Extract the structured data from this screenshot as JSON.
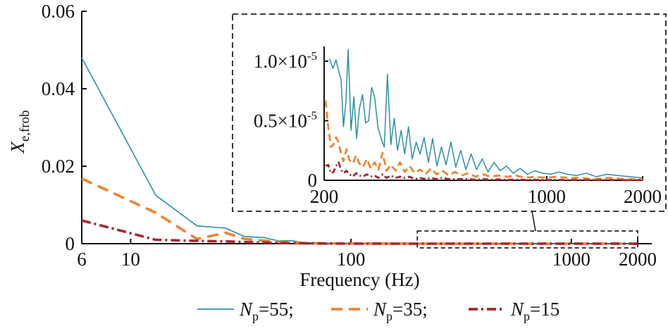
{
  "chart_data": {
    "type": "line",
    "x_scale": "log",
    "xlabel": "Frequency (Hz)",
    "ylabel": {
      "base": "X",
      "sub": "e,frob"
    },
    "xlim": [
      6,
      2000
    ],
    "ylim": [
      0,
      0.06
    ],
    "x_ticks": [
      {
        "value": 6,
        "label": "6"
      },
      {
        "value": 10,
        "label": "10"
      },
      {
        "value": 100,
        "label": "100"
      },
      {
        "value": 1000,
        "label": "1000"
      },
      {
        "value": 2000,
        "label": "2000"
      }
    ],
    "y_ticks": [
      {
        "value": 0,
        "label": "0"
      },
      {
        "value": 0.02,
        "label": "0.02"
      },
      {
        "value": 0.04,
        "label": "0.04"
      },
      {
        "value": 0.06,
        "label": "0.06"
      }
    ],
    "legend_position": "bottom",
    "series": [
      {
        "id": "np55",
        "name_base": "N",
        "name_sub": "p",
        "name_rest": "=55;",
        "color": "#2e8fa3",
        "style": "solid",
        "x": [
          6,
          13,
          20,
          27,
          33,
          40,
          47,
          54,
          60,
          70,
          80,
          100,
          150,
          200,
          300,
          500,
          1000,
          2000
        ],
        "y": [
          0.048,
          0.0125,
          0.0046,
          0.004,
          0.0018,
          0.0016,
          0.0007,
          0.0008,
          0.0003,
          0.0002,
          0.0001,
          5e-05,
          3e-05,
          1e-05,
          6e-06,
          4e-06,
          2e-06,
          1e-06
        ]
      },
      {
        "id": "np35",
        "name_base": "N",
        "name_sub": "p",
        "name_rest": "=35;",
        "color": "#ea8433",
        "style": "dashed",
        "x": [
          6,
          13,
          20,
          27,
          33,
          40,
          47,
          54,
          60,
          70,
          80,
          100,
          150,
          200,
          300,
          500,
          1000,
          2000
        ],
        "y": [
          0.0168,
          0.008,
          0.0012,
          0.0028,
          0.0012,
          0.0008,
          0.0004,
          0.0003,
          0.0002,
          0.0001,
          6e-05,
          3e-05,
          1e-05,
          7e-06,
          3e-06,
          1e-06,
          5e-07,
          3e-07
        ]
      },
      {
        "id": "np15",
        "name_base": "N",
        "name_sub": "p",
        "name_rest": "=15",
        "color": "#a6262f",
        "style": "dashdot",
        "x": [
          6,
          13,
          20,
          27,
          33,
          40,
          47,
          54,
          60,
          70,
          80,
          100,
          150,
          200,
          300,
          500,
          1000,
          2000
        ],
        "y": [
          0.006,
          0.001,
          0.0007,
          0.0006,
          0.0004,
          0.0003,
          0.0002,
          0.00015,
          0.0001,
          6e-05,
          4e-05,
          2e-05,
          5e-06,
          2e-06,
          1e-06,
          5e-07,
          2e-07,
          1e-07
        ]
      }
    ],
    "inset": {
      "x_scale": "log",
      "xlim": [
        200,
        2000
      ],
      "ylim": [
        0,
        1.1e-05
      ],
      "x_ticks": [
        {
          "value": 200,
          "label": "200"
        },
        {
          "value": 1000,
          "label": "1000"
        },
        {
          "value": 2000,
          "label": "2000"
        }
      ],
      "y_ticks": [
        {
          "value": 0,
          "label": "0",
          "exp": ""
        },
        {
          "value": 5e-06,
          "label": "0.5×10",
          "exp": "-5"
        },
        {
          "value": 1e-05,
          "label": "1.0×10",
          "exp": "-5"
        }
      ],
      "series": [
        {
          "id": "np55",
          "x": [
            208,
            213,
            218,
            222,
            226,
            230,
            234,
            238,
            243,
            248,
            253,
            258,
            264,
            270,
            276,
            282,
            288,
            295,
            302,
            309,
            316,
            324,
            332,
            340,
            349,
            358,
            368,
            378,
            389,
            400,
            412,
            425,
            438,
            452,
            467,
            483,
            500,
            518,
            537,
            557,
            579,
            602,
            627,
            654,
            683,
            714,
            748,
            785,
            825,
            869,
            917,
            970,
            1028,
            1092,
            1163,
            1242,
            1331,
            1431,
            1545,
            1676,
            1826,
            2000
          ],
          "y": [
            1.02e-05,
            9.4e-06,
            1.01e-05,
            9.2e-06,
            8.5e-06,
            4.5e-06,
            6.5e-06,
            1.1e-05,
            4.2e-06,
            7e-06,
            3.5e-06,
            6e-06,
            7.2e-06,
            4.8e-06,
            5e-06,
            7.8e-06,
            7e-06,
            4.5e-06,
            3.5e-06,
            2.8e-06,
            8.9e-06,
            3e-06,
            5.2e-06,
            2.5e-06,
            4.2e-06,
            2.2e-06,
            4.5e-06,
            1.8e-06,
            3.2e-06,
            2.2e-06,
            3.6e-06,
            1.5e-06,
            3.5e-06,
            1.2e-06,
            2.8e-06,
            1.3e-06,
            3.2e-06,
            1.1e-06,
            2.5e-06,
            9e-07,
            2.2e-06,
            9e-07,
            1.8e-06,
            7e-07,
            1.5e-06,
            8e-07,
            1.2e-06,
            6e-07,
            1e-06,
            5e-07,
            8e-07,
            6e-07,
            5e-07,
            7e-07,
            5e-07,
            4e-07,
            6e-07,
            3e-07,
            5e-07,
            4e-07,
            3e-07,
            2e-07
          ]
        },
        {
          "id": "np35",
          "x": [
            202,
            206,
            210,
            214,
            218,
            222,
            226,
            230,
            235,
            240,
            246,
            252,
            258,
            265,
            272,
            280,
            288,
            296,
            305,
            314,
            324,
            335,
            346,
            358,
            371,
            385,
            400,
            416,
            433,
            451,
            471,
            492,
            515,
            540,
            567,
            597,
            630,
            666,
            706,
            750,
            800,
            855,
            918,
            990,
            1072,
            1166,
            1277,
            1408,
            1566,
            1760,
            2000
          ],
          "y": [
            6.7e-06,
            4.5e-06,
            2.8e-06,
            3e-06,
            3.6e-06,
            3.2e-06,
            2.2e-06,
            1.6e-06,
            2.6e-06,
            1.7e-06,
            1.4e-06,
            2.1e-06,
            1.4e-06,
            1.1e-06,
            1.8e-06,
            1e-06,
            1.5e-06,
            9e-07,
            2.3e-06,
            8e-07,
            1.3e-06,
            8e-07,
            1.5e-06,
            7e-07,
            1.2e-06,
            6e-07,
            9e-07,
            5e-07,
            1e-06,
            5e-07,
            8e-07,
            4e-07,
            7e-07,
            4e-07,
            6e-07,
            3e-07,
            5e-07,
            3e-07,
            4e-07,
            3e-07,
            4e-07,
            2e-07,
            3e-07,
            2e-07,
            3e-07,
            2e-07,
            2e-07,
            1e-07,
            2e-07,
            1e-07,
            1e-07
          ]
        },
        {
          "id": "np15",
          "x": [
            202,
            206,
            210,
            214,
            218,
            222,
            226,
            230,
            235,
            240,
            246,
            252,
            258,
            265,
            272,
            280,
            288,
            296,
            305,
            314,
            324,
            335,
            346,
            358,
            371,
            385,
            400,
            416,
            433,
            451,
            471,
            492,
            515,
            540,
            567,
            597,
            630,
            666,
            706,
            750,
            800,
            855,
            918,
            990,
            1072,
            1166,
            1277,
            1408,
            1566,
            1760,
            2000
          ],
          "y": [
            1.2e-06,
            1.3e-06,
            6e-07,
            7e-07,
            1.2e-06,
            1.5e-06,
            9e-07,
            6e-07,
            8e-07,
            5e-07,
            3e-07,
            6e-07,
            4e-07,
            3e-07,
            5e-07,
            3e-07,
            4e-07,
            2e-07,
            5e-07,
            2e-07,
            4e-07,
            2e-07,
            3e-07,
            2e-07,
            3e-07,
            1e-07,
            2e-07,
            1e-07,
            2e-07,
            1e-07,
            2e-07,
            1e-07,
            1e-07,
            1e-07,
            1e-07,
            5e-08,
            1e-07,
            5e-08,
            8e-08,
            5e-08,
            6e-08,
            4e-08,
            5e-08,
            3e-08,
            4e-08,
            3e-08,
            3e-08,
            2e-08,
            2e-08,
            2e-08,
            1e-08
          ]
        }
      ]
    }
  }
}
